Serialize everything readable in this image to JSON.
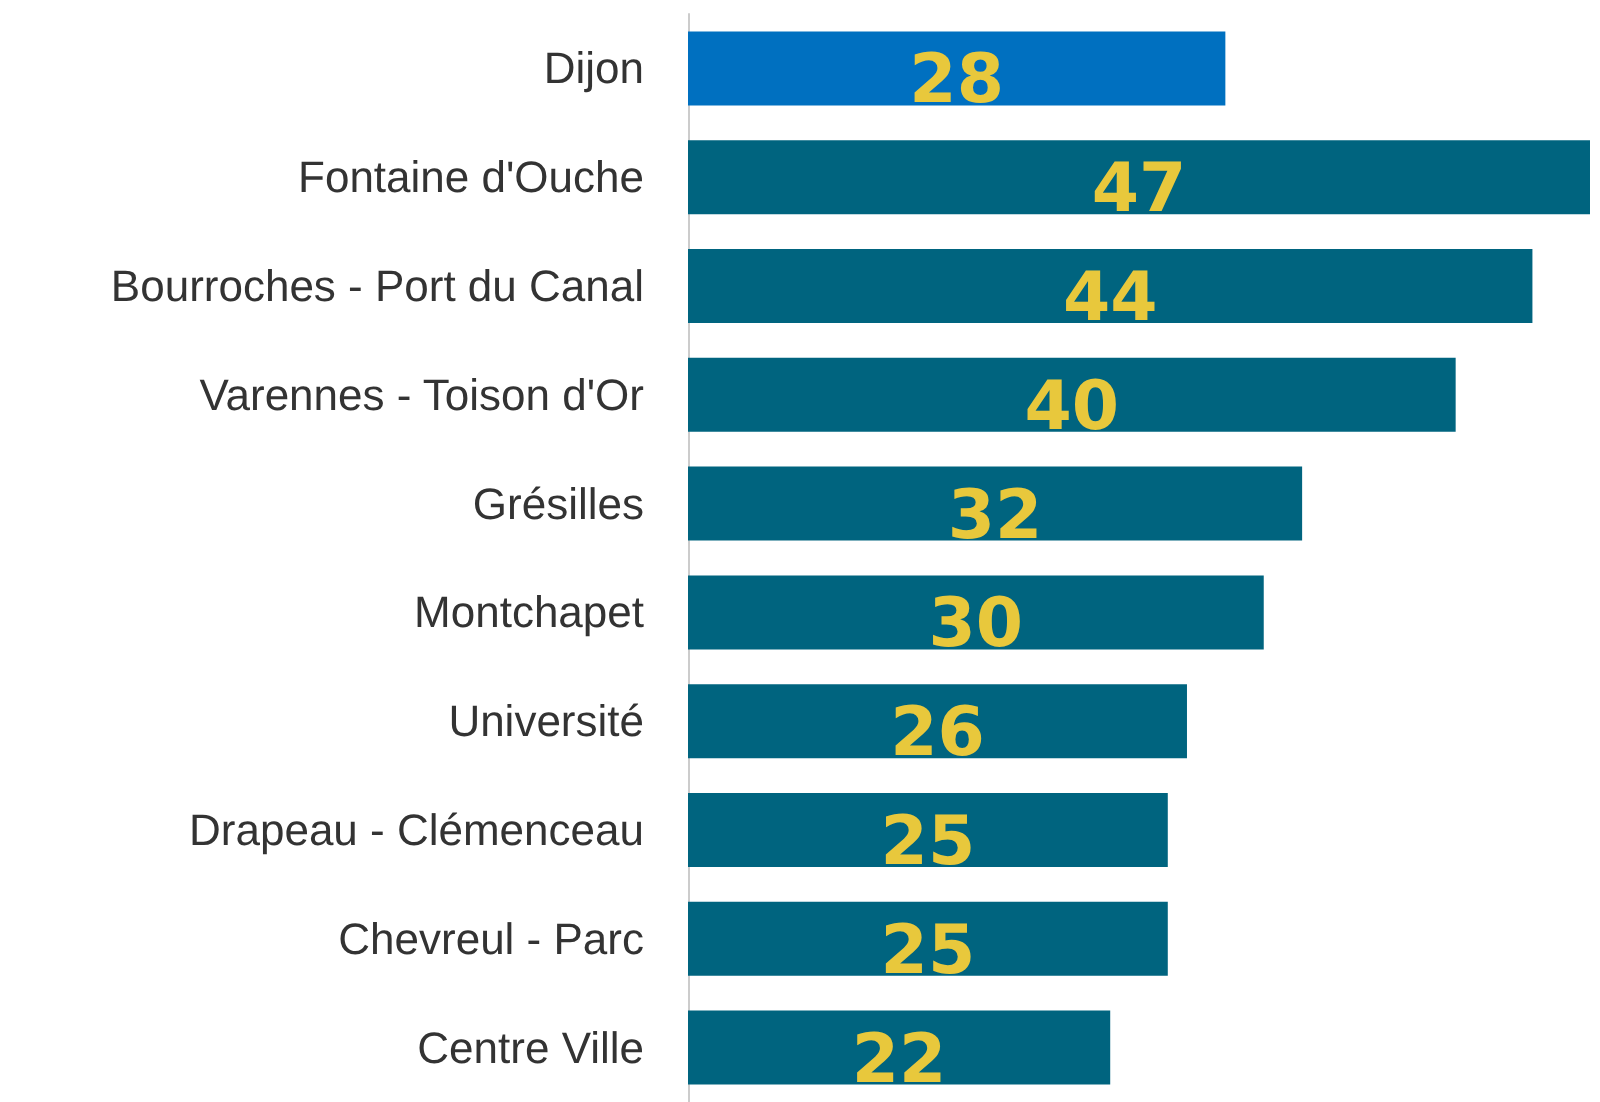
{
  "chart_data": {
    "type": "bar",
    "orientation": "horizontal",
    "categories": [
      "Dijon",
      "Fontaine d'Ouche",
      "Bourroches - Port du Canal",
      "Varennes - Toison d'Or",
      "Grésilles",
      "Montchapet",
      "Université",
      "Drapeau - Clémenceau",
      "Chevreul - Parc",
      "Centre Ville"
    ],
    "values": [
      28,
      47,
      44,
      40,
      32,
      30,
      26,
      25,
      25,
      22
    ],
    "colors": [
      "#0070c0",
      "#00647f",
      "#00647f",
      "#00647f",
      "#00647f",
      "#00647f",
      "#00647f",
      "#00647f",
      "#00647f",
      "#00647f"
    ],
    "data_labels": true
  }
}
